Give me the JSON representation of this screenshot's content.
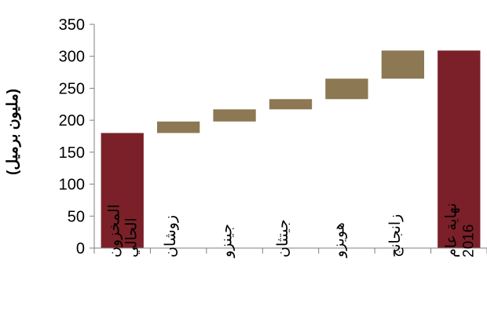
{
  "chart_data": {
    "type": "bar",
    "subtype": "waterfall",
    "title": "",
    "xlabel": "",
    "ylabel": "(مليون برميل)",
    "ylim": [
      0,
      350
    ],
    "yticks": [
      0,
      50,
      100,
      150,
      200,
      250,
      300,
      350
    ],
    "grid": false,
    "categories": [
      "المخزون الحالي",
      "زوشان",
      "جينزو",
      "جيتثان",
      "هويزو",
      "زانجانج",
      "نهاية عام 2016"
    ],
    "bars": [
      {
        "category": "المخزون الحالي",
        "kind": "total",
        "start": 0,
        "end": 180
      },
      {
        "category": "زوشان",
        "kind": "increment",
        "start": 180,
        "end": 198
      },
      {
        "category": "جينزو",
        "kind": "increment",
        "start": 198,
        "end": 217
      },
      {
        "category": "جيتثان",
        "kind": "increment",
        "start": 217,
        "end": 233
      },
      {
        "category": "هويزو",
        "kind": "increment",
        "start": 233,
        "end": 265
      },
      {
        "category": "زانجانج",
        "kind": "increment",
        "start": 265,
        "end": 309
      },
      {
        "category": "نهاية عام 2016",
        "kind": "total",
        "start": 0,
        "end": 309
      }
    ],
    "colors": {
      "total": "#7b2028",
      "increment": "#8c7853"
    }
  }
}
